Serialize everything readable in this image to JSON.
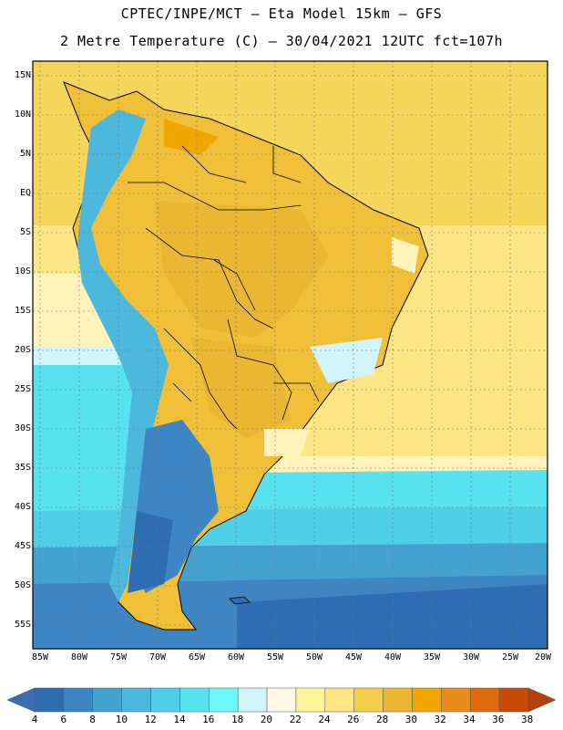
{
  "title": {
    "line1": "CPTEC/INPE/MCT –  Eta Model 15km – GFS",
    "line2": "2 Metre Temperature (C) – 30/04/2021 12UTC fct=107h"
  },
  "map": {
    "latitude_labels": [
      "15N",
      "10N",
      "5N",
      "EQ",
      "5S",
      "10S",
      "15S",
      "20S",
      "25S",
      "30S",
      "35S",
      "40S",
      "45S",
      "50S",
      "55S"
    ],
    "longitude_labels": [
      "85W",
      "80W",
      "75W",
      "70W",
      "65W",
      "60W",
      "55W",
      "50W",
      "45W",
      "40W",
      "35W",
      "30W",
      "25W",
      "20W"
    ],
    "region": "South America"
  },
  "colorbar": {
    "labels": [
      "4",
      "6",
      "8",
      "10",
      "12",
      "14",
      "16",
      "18",
      "20",
      "22",
      "24",
      "26",
      "28",
      "30",
      "32",
      "34",
      "36",
      "38"
    ],
    "colors": [
      "#3a6eb0",
      "#2f6db3",
      "#3e86c3",
      "#43a2d0",
      "#4bb8dc",
      "#4fd0e8",
      "#59e3f0",
      "#6ff6fa",
      "#d2f4fb",
      "#fff8e5",
      "#fff59a",
      "#fde584",
      "#f4cf4e",
      "#e9b731",
      "#f0a800",
      "#e88c1c",
      "#dd6a0c",
      "#c84a05",
      "#b5400a"
    ]
  }
}
